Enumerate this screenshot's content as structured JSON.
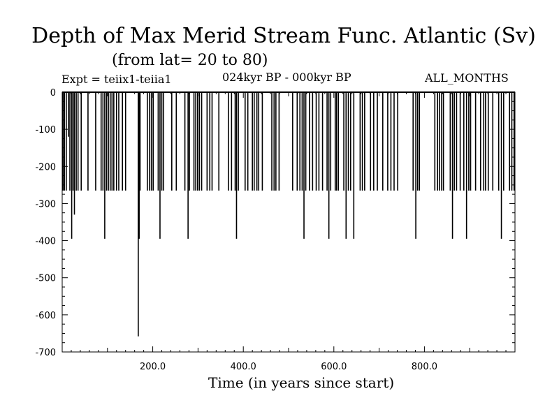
{
  "chart_data": {
    "type": "line",
    "title": "Depth of Max Merid Stream Func. Atlantic (Sv)",
    "subtitle": "(from lat= 20 to 80)",
    "annotations": {
      "experiment": "Expt = teiix1-teiia1",
      "period": "024kyr BP - 000kyr BP",
      "months": "ALL_MONTHS"
    },
    "xlabel": "Time (in years since start)",
    "ylabel": "",
    "xlim": [
      0,
      1000
    ],
    "ylim": [
      -700,
      0
    ],
    "x_ticks": [
      200,
      400,
      600,
      800
    ],
    "x_tick_labels": [
      "200.0",
      "400.0",
      "600.0",
      "800.0"
    ],
    "y_ticks": [
      0,
      -100,
      -200,
      -300,
      -400,
      -500,
      -600,
      -700
    ],
    "y_tick_labels": [
      "0",
      "-100",
      "-200",
      "-300",
      "-400",
      "-500",
      "-600",
      "-700"
    ],
    "grid": false,
    "series": [
      {
        "color": "#000000",
        "spikes": [
          {
            "x": 2,
            "y": -265
          },
          {
            "x": 5,
            "y": -265
          },
          {
            "x": 9,
            "y": -265
          },
          {
            "x": 14,
            "y": -120
          },
          {
            "x": 17,
            "y": -265
          },
          {
            "x": 21,
            "y": -395
          },
          {
            "x": 24,
            "y": -265
          },
          {
            "x": 27,
            "y": -330
          },
          {
            "x": 31,
            "y": -265
          },
          {
            "x": 35,
            "y": -265
          },
          {
            "x": 42,
            "y": -265
          },
          {
            "x": 57,
            "y": -265
          },
          {
            "x": 74,
            "y": -265
          },
          {
            "x": 86,
            "y": -265
          },
          {
            "x": 90,
            "y": -265
          },
          {
            "x": 94,
            "y": -395
          },
          {
            "x": 98,
            "y": -265
          },
          {
            "x": 102,
            "y": -265
          },
          {
            "x": 106,
            "y": -265
          },
          {
            "x": 110,
            "y": -265
          },
          {
            "x": 114,
            "y": -265
          },
          {
            "x": 120,
            "y": -265
          },
          {
            "x": 125,
            "y": -265
          },
          {
            "x": 133,
            "y": -265
          },
          {
            "x": 140,
            "y": -265
          },
          {
            "x": 168,
            "y": -658
          },
          {
            "x": 170,
            "y": -395
          },
          {
            "x": 172,
            "y": -265
          },
          {
            "x": 188,
            "y": -265
          },
          {
            "x": 193,
            "y": -265
          },
          {
            "x": 197,
            "y": -265
          },
          {
            "x": 201,
            "y": -265
          },
          {
            "x": 212,
            "y": -265
          },
          {
            "x": 216,
            "y": -395
          },
          {
            "x": 220,
            "y": -265
          },
          {
            "x": 224,
            "y": -265
          },
          {
            "x": 242,
            "y": -265
          },
          {
            "x": 252,
            "y": -265
          },
          {
            "x": 271,
            "y": -265
          },
          {
            "x": 278,
            "y": -395
          },
          {
            "x": 281,
            "y": -265
          },
          {
            "x": 291,
            "y": -265
          },
          {
            "x": 295,
            "y": -265
          },
          {
            "x": 299,
            "y": -265
          },
          {
            "x": 303,
            "y": -265
          },
          {
            "x": 308,
            "y": -265
          },
          {
            "x": 320,
            "y": -265
          },
          {
            "x": 326,
            "y": -265
          },
          {
            "x": 331,
            "y": -265
          },
          {
            "x": 346,
            "y": -265
          },
          {
            "x": 367,
            "y": -265
          },
          {
            "x": 374,
            "y": -265
          },
          {
            "x": 382,
            "y": -265
          },
          {
            "x": 385,
            "y": -395
          },
          {
            "x": 389,
            "y": -265
          },
          {
            "x": 404,
            "y": -265
          },
          {
            "x": 410,
            "y": -265
          },
          {
            "x": 420,
            "y": -265
          },
          {
            "x": 424,
            "y": -265
          },
          {
            "x": 430,
            "y": -265
          },
          {
            "x": 434,
            "y": -265
          },
          {
            "x": 442,
            "y": -265
          },
          {
            "x": 463,
            "y": -265
          },
          {
            "x": 468,
            "y": -265
          },
          {
            "x": 472,
            "y": -265
          },
          {
            "x": 479,
            "y": -265
          },
          {
            "x": 509,
            "y": -265
          },
          {
            "x": 519,
            "y": -265
          },
          {
            "x": 525,
            "y": -265
          },
          {
            "x": 530,
            "y": -265
          },
          {
            "x": 534,
            "y": -395
          },
          {
            "x": 538,
            "y": -265
          },
          {
            "x": 546,
            "y": -265
          },
          {
            "x": 553,
            "y": -265
          },
          {
            "x": 561,
            "y": -265
          },
          {
            "x": 567,
            "y": -265
          },
          {
            "x": 575,
            "y": -265
          },
          {
            "x": 585,
            "y": -265
          },
          {
            "x": 589,
            "y": -395
          },
          {
            "x": 593,
            "y": -265
          },
          {
            "x": 603,
            "y": -265
          },
          {
            "x": 606,
            "y": -265
          },
          {
            "x": 610,
            "y": -265
          },
          {
            "x": 622,
            "y": -265
          },
          {
            "x": 627,
            "y": -395
          },
          {
            "x": 632,
            "y": -265
          },
          {
            "x": 637,
            "y": -265
          },
          {
            "x": 644,
            "y": -395
          },
          {
            "x": 658,
            "y": -265
          },
          {
            "x": 663,
            "y": -265
          },
          {
            "x": 668,
            "y": -265
          },
          {
            "x": 681,
            "y": -265
          },
          {
            "x": 688,
            "y": -265
          },
          {
            "x": 696,
            "y": -265
          },
          {
            "x": 708,
            "y": -265
          },
          {
            "x": 719,
            "y": -265
          },
          {
            "x": 726,
            "y": -265
          },
          {
            "x": 733,
            "y": -265
          },
          {
            "x": 741,
            "y": -265
          },
          {
            "x": 775,
            "y": -265
          },
          {
            "x": 781,
            "y": -395
          },
          {
            "x": 785,
            "y": -265
          },
          {
            "x": 789,
            "y": -265
          },
          {
            "x": 823,
            "y": -265
          },
          {
            "x": 829,
            "y": -265
          },
          {
            "x": 833,
            "y": -265
          },
          {
            "x": 838,
            "y": -265
          },
          {
            "x": 842,
            "y": -265
          },
          {
            "x": 857,
            "y": -265
          },
          {
            "x": 862,
            "y": -395
          },
          {
            "x": 866,
            "y": -265
          },
          {
            "x": 871,
            "y": -265
          },
          {
            "x": 879,
            "y": -265
          },
          {
            "x": 887,
            "y": -265
          },
          {
            "x": 893,
            "y": -395
          },
          {
            "x": 898,
            "y": -265
          },
          {
            "x": 902,
            "y": -265
          },
          {
            "x": 913,
            "y": -265
          },
          {
            "x": 924,
            "y": -265
          },
          {
            "x": 931,
            "y": -265
          },
          {
            "x": 935,
            "y": -265
          },
          {
            "x": 941,
            "y": -265
          },
          {
            "x": 951,
            "y": -265
          },
          {
            "x": 964,
            "y": -265
          },
          {
            "x": 970,
            "y": -395
          },
          {
            "x": 975,
            "y": -265
          },
          {
            "x": 988,
            "y": -265
          },
          {
            "x": 993,
            "y": -265
          },
          {
            "x": 998,
            "y": -265
          }
        ]
      }
    ]
  }
}
